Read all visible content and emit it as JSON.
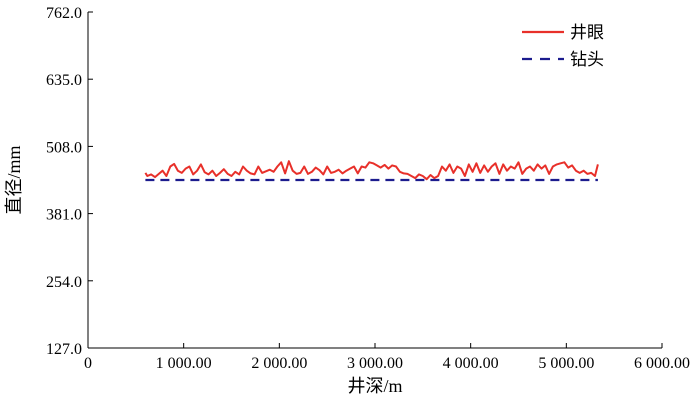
{
  "chart_data": {
    "type": "line",
    "xlabel": "井深/m",
    "ylabel": "直径/mm",
    "xlim": [
      0,
      6000
    ],
    "ylim": [
      127.0,
      762.0
    ],
    "x_ticks": [
      0,
      1000,
      2000,
      3000,
      4000,
      5000,
      6000
    ],
    "x_tick_labels": [
      "0",
      "1 000.00",
      "2 000.00",
      "3 000.00",
      "4 000.00",
      "5 000.00",
      "6 000.00"
    ],
    "y_ticks": [
      127.0,
      254.0,
      381.0,
      508.0,
      635.0,
      762.0
    ],
    "y_tick_labels": [
      "127.0",
      "254.0",
      "381.0",
      "508.0",
      "635.0",
      "762.0"
    ],
    "grid": false,
    "legend_position": "top-right",
    "series": [
      {
        "name": "井眼",
        "style": "solid",
        "color": "#e8302a",
        "x": [
          600,
          620,
          660,
          700,
          740,
          780,
          820,
          860,
          900,
          940,
          980,
          1020,
          1060,
          1100,
          1140,
          1180,
          1220,
          1260,
          1300,
          1340,
          1380,
          1420,
          1460,
          1500,
          1540,
          1580,
          1620,
          1660,
          1700,
          1740,
          1780,
          1820,
          1860,
          1900,
          1940,
          1980,
          2020,
          2060,
          2100,
          2140,
          2180,
          2220,
          2260,
          2300,
          2340,
          2380,
          2420,
          2460,
          2500,
          2540,
          2580,
          2620,
          2660,
          2700,
          2740,
          2780,
          2820,
          2860,
          2900,
          2940,
          2980,
          3020,
          3060,
          3100,
          3140,
          3180,
          3220,
          3260,
          3300,
          3340,
          3380,
          3420,
          3460,
          3500,
          3540,
          3580,
          3620,
          3660,
          3700,
          3740,
          3780,
          3820,
          3860,
          3900,
          3940,
          3980,
          4020,
          4060,
          4100,
          4140,
          4180,
          4220,
          4260,
          4300,
          4340,
          4380,
          4420,
          4460,
          4500,
          4540,
          4580,
          4620,
          4660,
          4700,
          4740,
          4780,
          4820,
          4860,
          4900,
          4940,
          4980,
          5020,
          5060,
          5100,
          5140,
          5180,
          5220,
          5260,
          5300,
          5330
        ],
        "values": [
          458,
          452,
          455,
          450,
          456,
          462,
          452,
          470,
          475,
          462,
          458,
          466,
          470,
          455,
          462,
          474,
          459,
          455,
          462,
          452,
          458,
          465,
          456,
          452,
          460,
          455,
          470,
          462,
          457,
          455,
          470,
          458,
          461,
          464,
          460,
          470,
          478,
          457,
          480,
          462,
          456,
          458,
          470,
          456,
          460,
          468,
          463,
          455,
          470,
          458,
          460,
          464,
          457,
          462,
          466,
          470,
          457,
          470,
          468,
          478,
          476,
          472,
          468,
          473,
          466,
          472,
          470,
          460,
          457,
          456,
          452,
          448,
          455,
          452,
          446,
          454,
          448,
          452,
          470,
          462,
          474,
          458,
          470,
          466,
          452,
          474,
          460,
          476,
          458,
          472,
          460,
          470,
          476,
          456,
          474,
          462,
          470,
          466,
          478,
          456,
          466,
          470,
          462,
          474,
          466,
          472,
          456,
          470,
          474,
          476,
          478,
          468,
          472,
          462,
          458,
          462,
          456,
          458,
          452,
          474
        ]
      },
      {
        "name": "钻头",
        "style": "dashed",
        "color": "#1c1c8e",
        "x": [
          600,
          5330
        ],
        "values": [
          444.5,
          444.5
        ]
      }
    ]
  }
}
